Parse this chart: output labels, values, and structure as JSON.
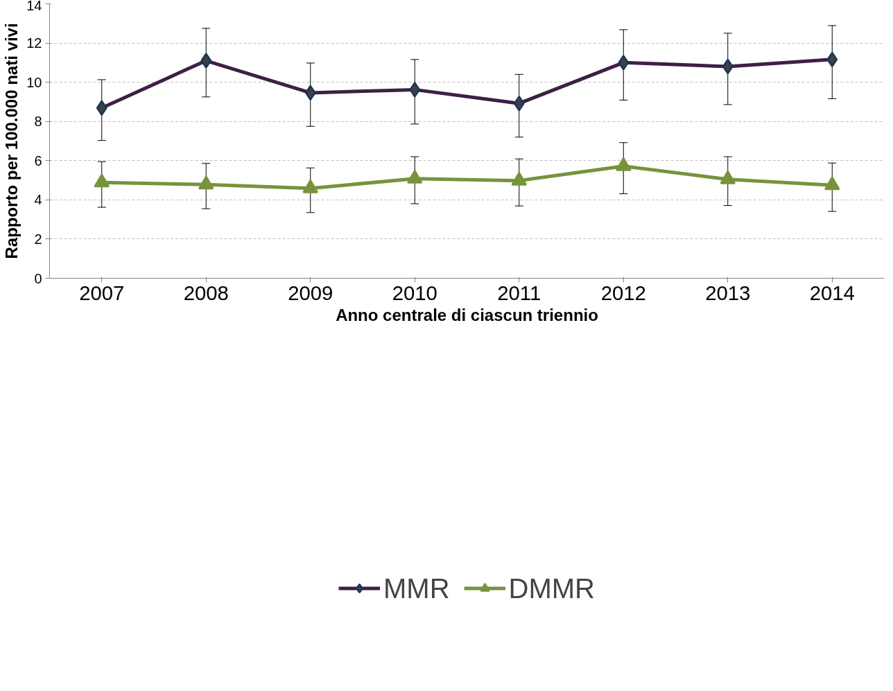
{
  "chart_data": {
    "type": "line",
    "xlabel": "Anno centrale di ciascun triennio",
    "ylabel": "Rapporto per 100.000 nati vivi",
    "categories": [
      "2007",
      "2008",
      "2009",
      "2010",
      "2011",
      "2012",
      "2013",
      "2014"
    ],
    "ylim": [
      0,
      14
    ],
    "yticks": [
      0,
      2,
      4,
      6,
      8,
      10,
      12,
      14
    ],
    "grid": "y",
    "legend": "bottom",
    "line_style": "solid",
    "series": [
      {
        "name": "MMR",
        "color": "#3f1f46",
        "marker": "diamond",
        "values": [
          8.69,
          11.1,
          9.46,
          9.62,
          8.92,
          11.0,
          10.8,
          11.16
        ],
        "errors": [
          [
            7.03,
            10.13
          ],
          [
            9.25,
            12.75
          ],
          [
            7.75,
            10.98
          ],
          [
            7.87,
            11.16
          ],
          [
            7.2,
            10.4
          ],
          [
            9.09,
            12.68
          ],
          [
            8.86,
            12.5
          ],
          [
            9.16,
            12.89
          ]
        ]
      },
      {
        "name": "DMMR",
        "color": "#77933c",
        "marker": "triangle",
        "values": [
          4.89,
          4.78,
          4.59,
          5.08,
          4.98,
          5.72,
          5.05,
          4.75
        ],
        "errors": [
          [
            3.62,
            5.95
          ],
          [
            3.55,
            5.86
          ],
          [
            3.35,
            5.63
          ],
          [
            3.8,
            6.2
          ],
          [
            3.69,
            6.09
          ],
          [
            4.31,
            6.92
          ],
          [
            3.71,
            6.2
          ],
          [
            3.41,
            5.88
          ]
        ]
      }
    ]
  }
}
